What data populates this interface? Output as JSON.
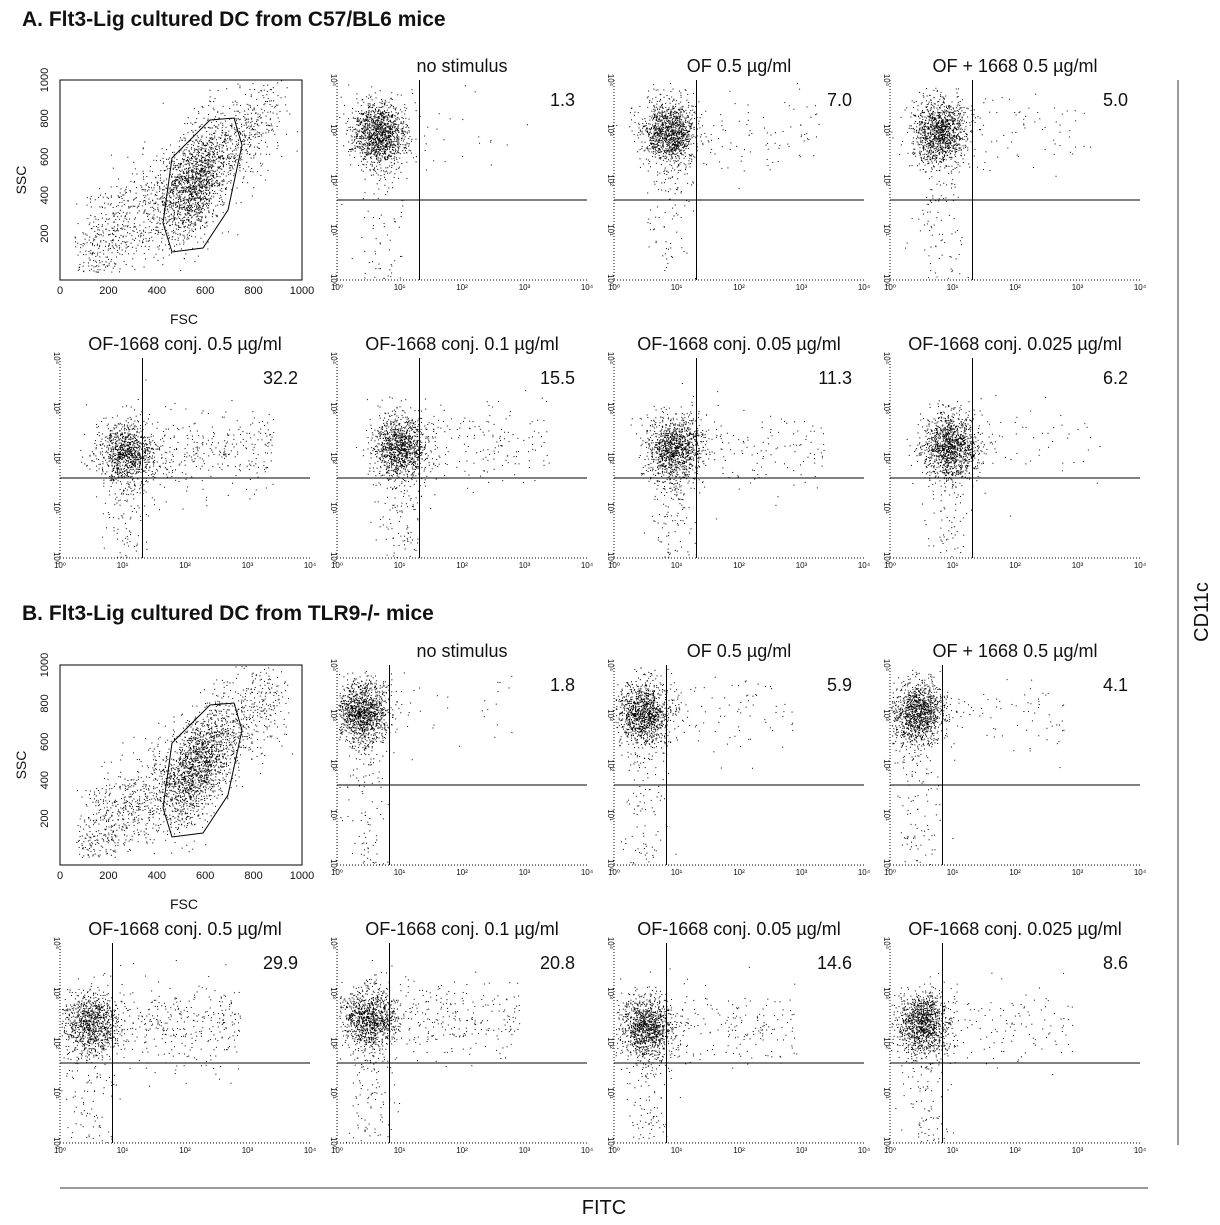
{
  "sections": [
    {
      "title": "A.  Flt3-Lig cultured DC from C57/BL6 mice",
      "gate_plot": {
        "y_label": "SSC",
        "x_label": "FSC",
        "xticks": [
          "0",
          "200",
          "400",
          "600",
          "800",
          "1000"
        ],
        "yticks": [
          "200",
          "400",
          "600",
          "800",
          "1000"
        ]
      },
      "panels": [
        {
          "title": "no stimulus",
          "percent": "1.3"
        },
        {
          "title": "OF 0.5 µg/ml",
          "percent": "7.0"
        },
        {
          "title": "OF + 1668 0.5 µg/ml",
          "percent": "5.0"
        },
        {
          "title": "OF-1668 conj. 0.5 µg/ml",
          "percent": "32.2"
        },
        {
          "title": "OF-1668 conj. 0.1 µg/ml",
          "percent": "15.5"
        },
        {
          "title": "OF-1668 conj. 0.05 µg/ml",
          "percent": "11.3"
        },
        {
          "title": "OF-1668 conj. 0.025 µg/ml",
          "percent": "6.2"
        }
      ]
    },
    {
      "title": "B.  Flt3-Lig cultured DC from TLR9-/- mice",
      "gate_plot": {
        "y_label": "SSC",
        "x_label": "FSC",
        "xticks": [
          "0",
          "200",
          "400",
          "600",
          "800",
          "1000"
        ],
        "yticks": [
          "200",
          "400",
          "600",
          "800",
          "1000"
        ]
      },
      "panels": [
        {
          "title": "no stimulus",
          "percent": "1.8"
        },
        {
          "title": "OF 0.5 µg/ml",
          "percent": "5.9"
        },
        {
          "title": "OF + 1668 0.5 µg/ml",
          "percent": "4.1"
        },
        {
          "title": "OF-1668 conj. 0.5 µg/ml",
          "percent": "29.9"
        },
        {
          "title": "OF-1668 conj. 0.1 µg/ml",
          "percent": "20.8"
        },
        {
          "title": "OF-1668 conj. 0.05 µg/ml",
          "percent": "14.6"
        },
        {
          "title": "OF-1668 conj. 0.025 µg/ml",
          "percent": "8.6"
        }
      ]
    }
  ],
  "log_ticks": [
    "10⁰",
    "10¹",
    "10²",
    "10³",
    "10⁴"
  ],
  "y_axis_label": "CD11c",
  "x_axis_label": "FITC"
}
